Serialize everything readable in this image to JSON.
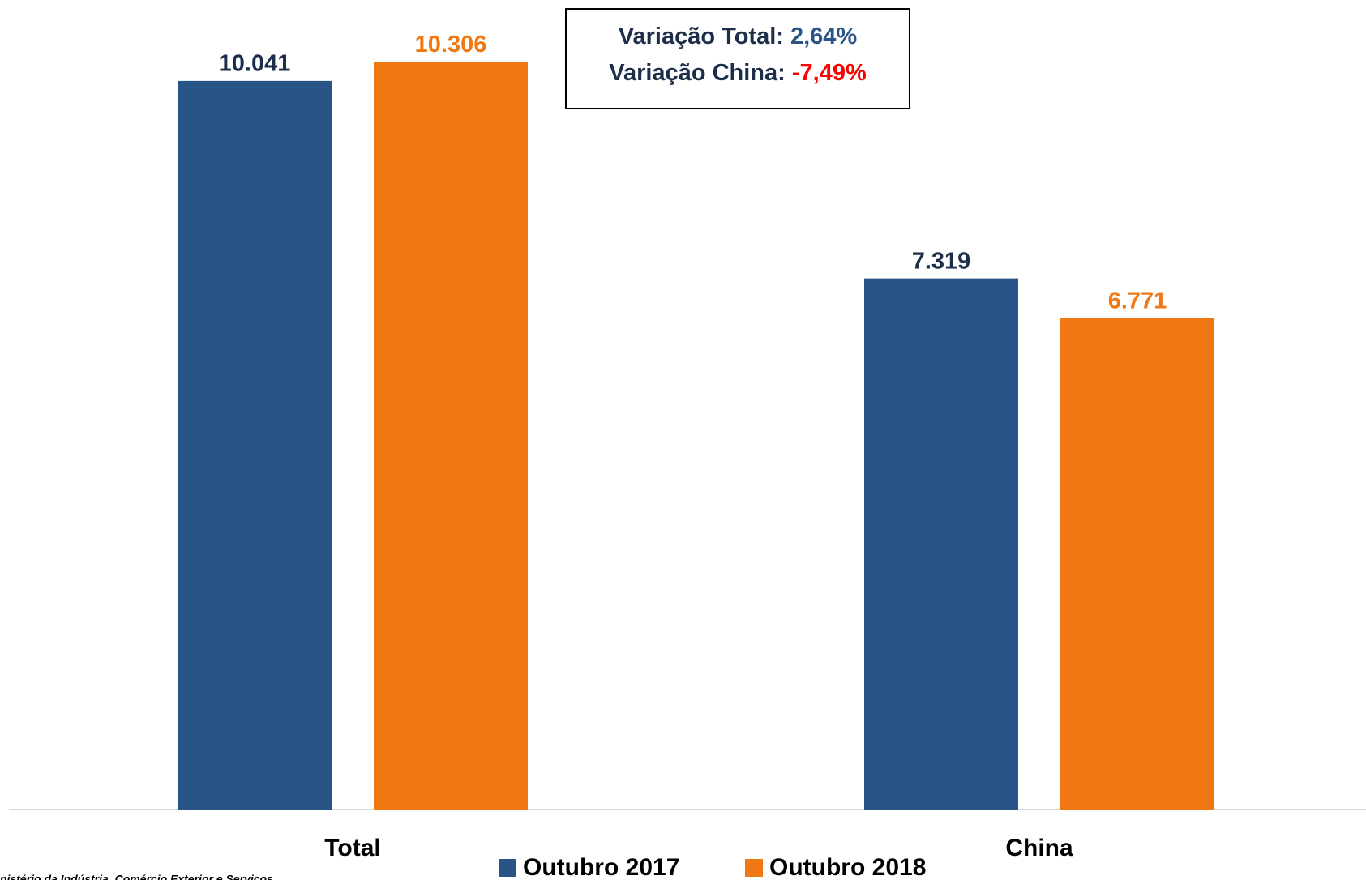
{
  "chart_data": {
    "type": "bar",
    "categories": [
      "Total",
      "China"
    ],
    "series": [
      {
        "name": "Outubro 2017",
        "color": "#285487",
        "label_color": "#1c2e4a",
        "values": [
          10041,
          7319
        ],
        "value_labels": [
          "10.041",
          "7.319"
        ]
      },
      {
        "name": "Outubro 2018",
        "color": "#f07813",
        "label_color": "#f07813",
        "values": [
          10306,
          6771
        ],
        "value_labels": [
          "10.306",
          "6.771"
        ]
      }
    ],
    "ylim": [
      0,
      11000
    ],
    "annotation": {
      "lines": [
        {
          "label": "Variação Total:",
          "value": "2,64%",
          "color": "#285487"
        },
        {
          "label": "Variação China:",
          "value": "-7,49%",
          "color": "#ff0000"
        }
      ]
    },
    "source": "nistério da Indústria, Comércio Exterior e Serviços",
    "legend": "bottom"
  }
}
